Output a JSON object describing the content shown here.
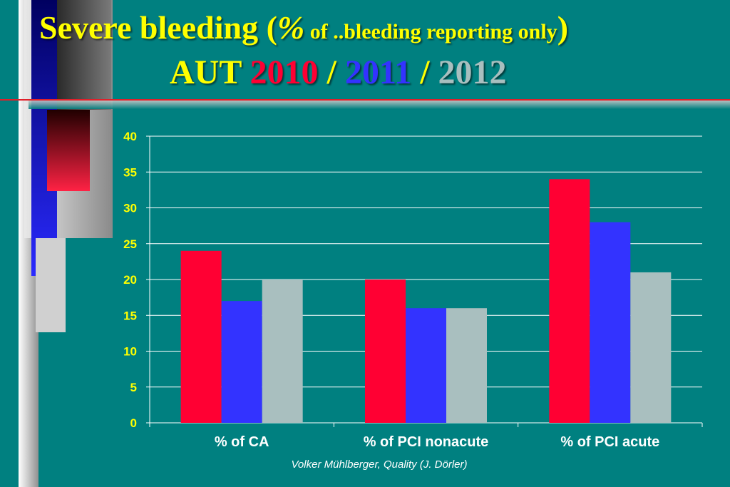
{
  "title": {
    "line1_main": "Severe  bleeding (",
    "line1_pct": "%",
    "line1_small": " of ..bleeding  reporting only",
    "line1_close": ")",
    "line2_aut": "AUT ",
    "line2_y1": "2010",
    "line2_sep1": " / ",
    "line2_y2": "2011",
    "line2_sep2": " / ",
    "line2_y3": "2012"
  },
  "footer": "Volker Mühlberger, Quality  (J. Dörler)",
  "colors": {
    "background": "#008080",
    "title": "#ffff00",
    "series_2010": "#ff0033",
    "series_2011": "#3333ff",
    "series_2012": "#a9bfbf",
    "axis_text": "#ffff00",
    "category_text": "#ffffff"
  },
  "chart_data": {
    "type": "bar",
    "title": "",
    "xlabel": "",
    "ylabel": "",
    "categories": [
      "% of CA",
      "% of PCI nonacute",
      "% of PCI acute"
    ],
    "series": [
      {
        "values": [
          24,
          20,
          34
        ]
      },
      {
        "values": [
          17,
          16,
          28
        ]
      },
      {
        "values": [
          20,
          16,
          21
        ]
      }
    ],
    "ylim": [
      0,
      40
    ],
    "yticks": [
      "0",
      "5",
      "10",
      "15",
      "20",
      "25",
      "30",
      "35",
      "40"
    ],
    "grid": true,
    "legend": "none"
  }
}
